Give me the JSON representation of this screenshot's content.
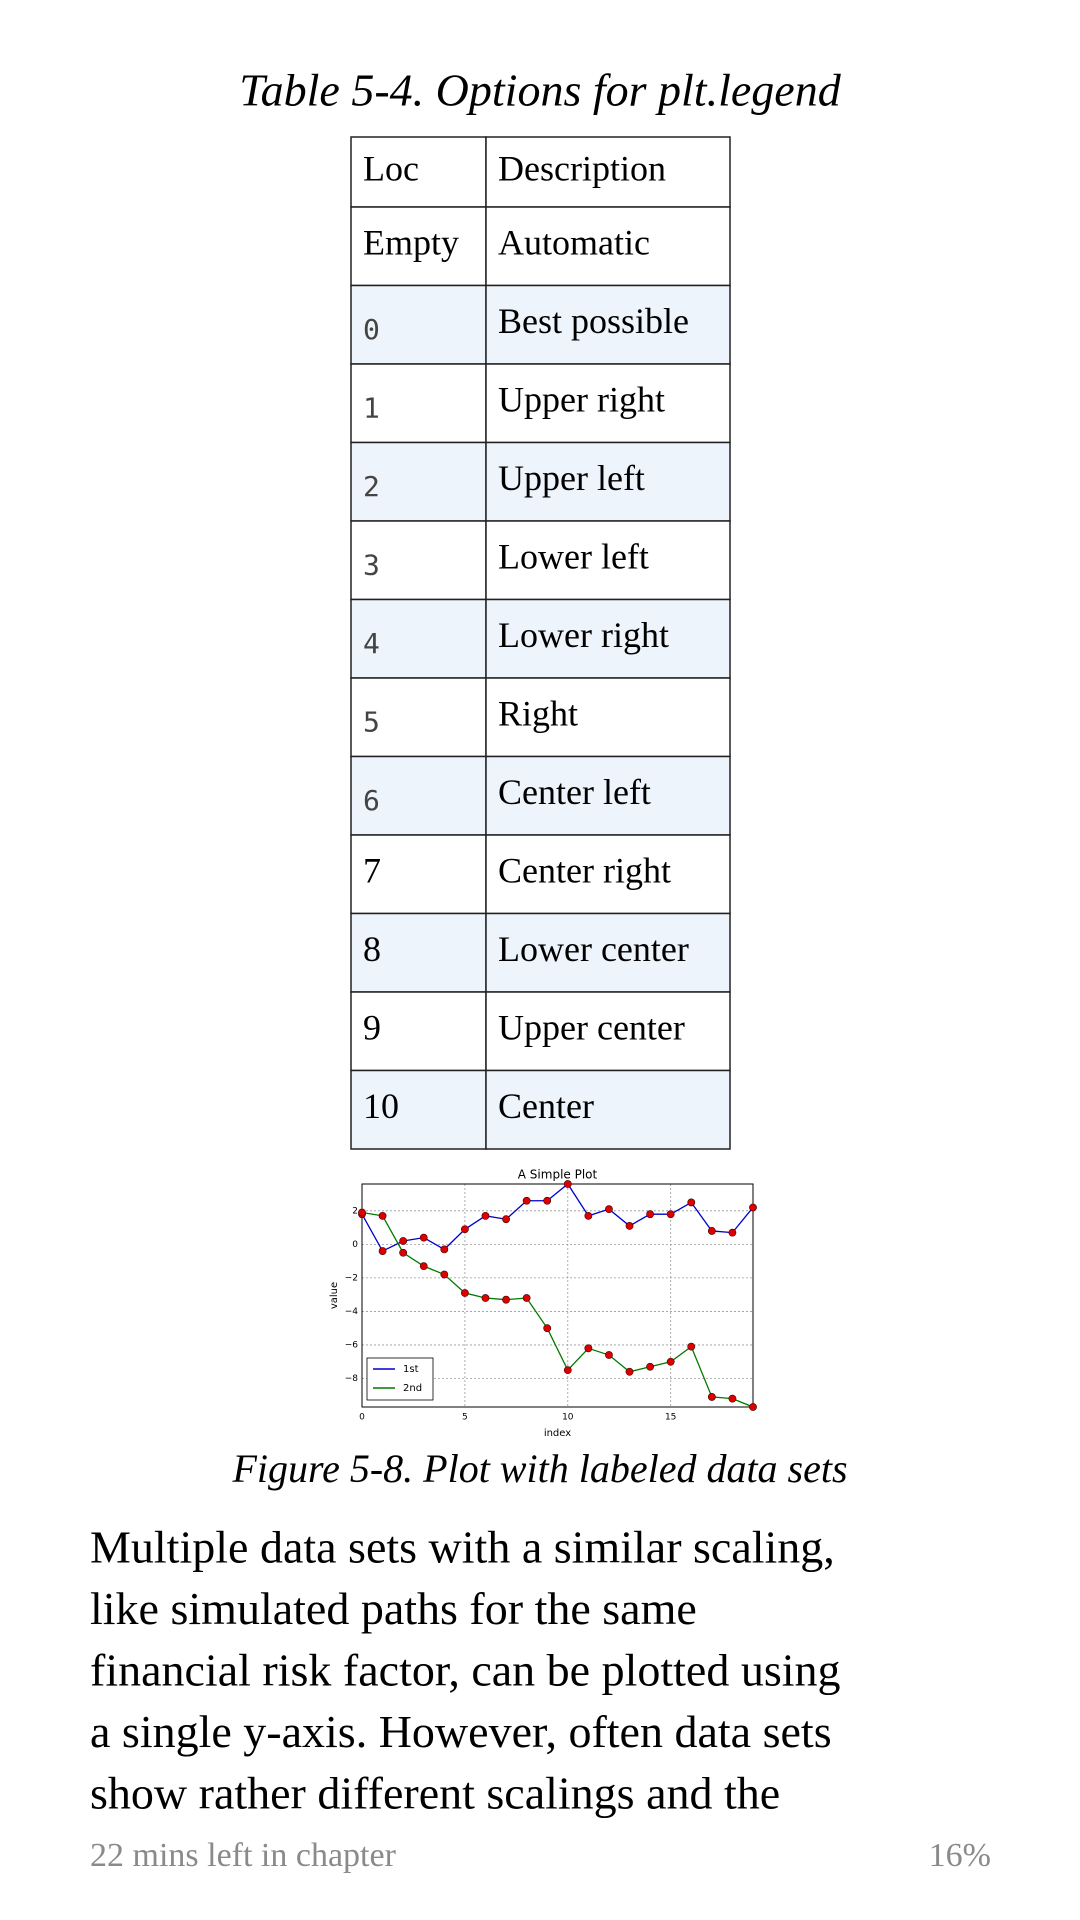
{
  "header": {
    "title": "Table 5-4. Options for plt.legend"
  },
  "table": {
    "header": [
      "Loc",
      "Description"
    ],
    "rows": [
      [
        "Empty",
        "Automatic"
      ],
      [
        "0",
        "Best possible"
      ],
      [
        "1",
        "Upper right"
      ],
      [
        "2",
        "Upper left"
      ],
      [
        "3",
        "Lower left"
      ],
      [
        "4",
        "Lower right"
      ],
      [
        "5",
        "Right"
      ],
      [
        "6",
        "Center left"
      ],
      [
        "7",
        "Center right"
      ],
      [
        "8",
        "Lower center"
      ],
      [
        "9",
        "Upper center"
      ],
      [
        "10",
        "Center"
      ]
    ]
  },
  "chart_data": {
    "type": "line",
    "title": "A Simple Plot",
    "x_label": "index",
    "y_label": "value",
    "x": [
      0,
      1,
      2,
      3,
      4,
      5,
      6,
      7,
      8,
      9,
      10,
      11,
      12,
      13,
      14,
      15,
      16,
      17,
      18,
      19
    ],
    "series": [
      {
        "name": "1st",
        "color": "#0000cc",
        "marker_color": "#dd0000",
        "values": [
          1.8,
          -0.4,
          0.2,
          0.4,
          -0.3,
          0.9,
          1.7,
          1.5,
          2.6,
          2.6,
          3.6,
          1.7,
          2.1,
          1.1,
          1.8,
          1.8,
          2.5,
          0.8,
          0.7,
          2.2
        ]
      },
      {
        "name": "2nd",
        "color": "#007a00",
        "marker_color": "#dd0000",
        "values": [
          1.9,
          1.7,
          -0.5,
          -1.3,
          -1.8,
          -2.9,
          -3.2,
          -3.3,
          -3.2,
          -5.0,
          -7.5,
          -6.2,
          -6.6,
          -7.6,
          -7.3,
          -7.0,
          -6.1,
          -9.1,
          -9.2,
          -9.7
        ]
      }
    ],
    "xlim": [
      0,
      19
    ],
    "ylim": [
      -9.7,
      3.6
    ],
    "xticks": [
      0,
      5,
      10,
      15
    ],
    "yticks": [
      {
        "value": -8,
        "label": "−8"
      },
      {
        "value": -6,
        "label": "−6"
      },
      {
        "value": -4,
        "label": "−4"
      },
      {
        "value": -2,
        "label": "−2"
      },
      0,
      2
    ],
    "grid": true,
    "legend": "lower-left"
  },
  "figure_caption": "Figure 5-8. Plot with labeled data sets",
  "body": {
    "lines": [
      "Multiple data sets with a similar scaling,",
      "like simulated paths for the same",
      "financial risk factor, can be plotted using",
      "a single y-axis. However, often data sets",
      "show rather different scalings and the"
    ]
  },
  "footer": {
    "time_left": "22 mins left in chapter",
    "progress": "16%"
  }
}
